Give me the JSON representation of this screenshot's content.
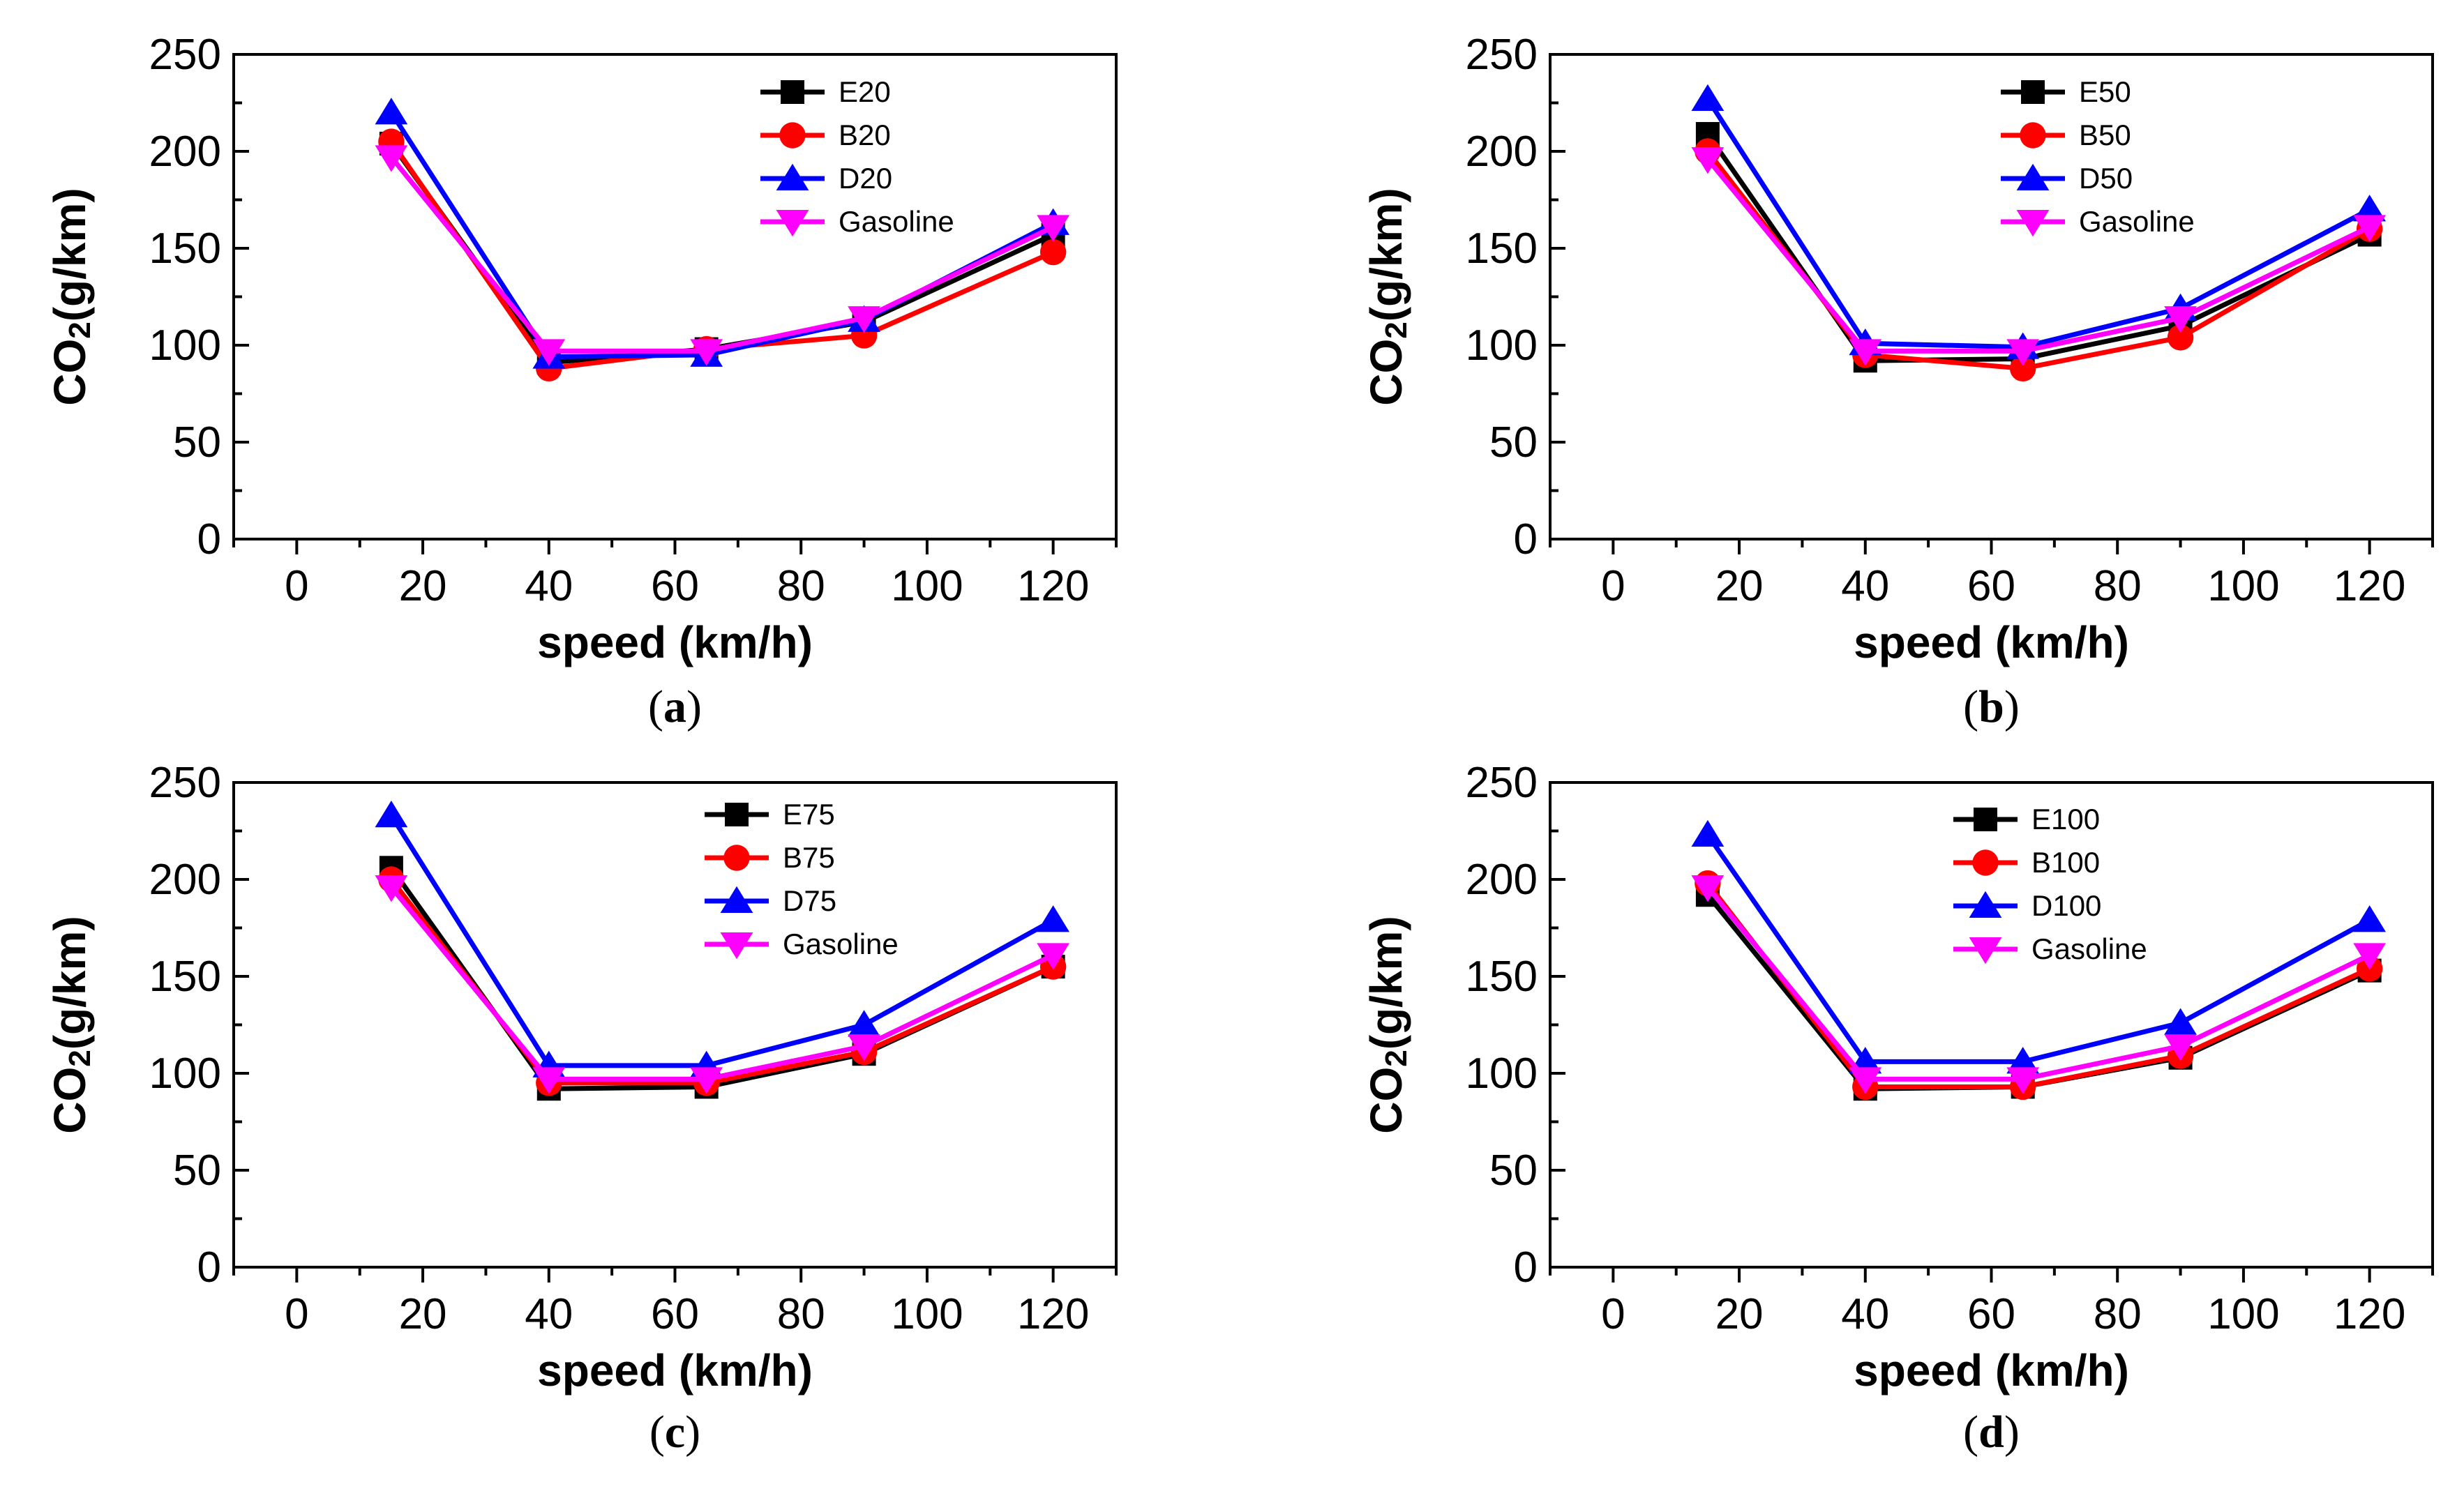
{
  "chart_data": [
    {
      "type": "line",
      "panel_label": "a",
      "xlabel": "speed (km/h)",
      "ylabel_main": "CO",
      "ylabel_sub": "2",
      "ylabel_rest": "(g/km)",
      "xlim": [
        -10,
        130
      ],
      "ylim": [
        0,
        250
      ],
      "xticks": [
        0,
        20,
        40,
        60,
        80,
        100,
        120
      ],
      "yticks": [
        0,
        50,
        100,
        150,
        200,
        250
      ],
      "legend_position": "top-right",
      "x": [
        15,
        40,
        65,
        90,
        120
      ],
      "series": [
        {
          "name": "E20",
          "values": [
            204,
            91,
            98,
            112,
            157
          ]
        },
        {
          "name": "B20",
          "values": [
            205,
            88,
            98,
            105,
            148
          ]
        },
        {
          "name": "D20",
          "values": [
            220,
            94,
            95,
            113,
            163
          ]
        },
        {
          "name": "Gasoline",
          "values": [
            197,
            97,
            97,
            114,
            161
          ]
        }
      ]
    },
    {
      "type": "line",
      "panel_label": "b",
      "xlabel": "speed (km/h)",
      "ylabel_main": "CO",
      "ylabel_sub": "2",
      "ylabel_rest": "(g/km)",
      "xlim": [
        -10,
        130
      ],
      "ylim": [
        0,
        250
      ],
      "xticks": [
        0,
        20,
        40,
        60,
        80,
        100,
        120
      ],
      "yticks": [
        0,
        50,
        100,
        150,
        200,
        250
      ],
      "legend_position": "top-right",
      "x": [
        15,
        40,
        65,
        90,
        120
      ],
      "series": [
        {
          "name": "E50",
          "values": [
            209,
            92,
            93,
            110,
            157
          ]
        },
        {
          "name": "B50",
          "values": [
            200,
            95,
            88,
            104,
            160
          ]
        },
        {
          "name": "D50",
          "values": [
            227,
            101,
            99,
            119,
            170
          ]
        },
        {
          "name": "Gasoline",
          "values": [
            196,
            97,
            97,
            114,
            161
          ]
        }
      ]
    },
    {
      "type": "line",
      "panel_label": "c",
      "xlabel": "speed (km/h)",
      "ylabel_main": "CO",
      "ylabel_sub": "2",
      "ylabel_rest": "(g/km)",
      "xlim": [
        -10,
        130
      ],
      "ylim": [
        0,
        250
      ],
      "xticks": [
        0,
        20,
        40,
        60,
        80,
        100,
        120
      ],
      "yticks": [
        0,
        50,
        100,
        150,
        200,
        250
      ],
      "legend_position": "top-right",
      "x": [
        15,
        40,
        65,
        90,
        120
      ],
      "series": [
        {
          "name": "E75",
          "values": [
            206,
            92,
            93,
            110,
            155
          ]
        },
        {
          "name": "B75",
          "values": [
            200,
            95,
            95,
            111,
            155
          ]
        },
        {
          "name": "D75",
          "values": [
            233,
            104,
            104,
            125,
            179
          ]
        },
        {
          "name": "Gasoline",
          "values": [
            196,
            97,
            97,
            114,
            161
          ]
        }
      ]
    },
    {
      "type": "line",
      "panel_label": "d",
      "xlabel": "speed (km/h)",
      "ylabel_main": "CO",
      "ylabel_sub": "2",
      "ylabel_rest": "(g/km)",
      "xlim": [
        -10,
        130
      ],
      "ylim": [
        0,
        250
      ],
      "xticks": [
        0,
        20,
        40,
        60,
        80,
        100,
        120
      ],
      "yticks": [
        0,
        50,
        100,
        150,
        200,
        250
      ],
      "legend_position": "top-right",
      "x": [
        15,
        40,
        65,
        90,
        120
      ],
      "series": [
        {
          "name": "E100",
          "values": [
            192,
            92,
            93,
            108,
            153
          ]
        },
        {
          "name": "B100",
          "values": [
            198,
            93,
            93,
            109,
            154
          ]
        },
        {
          "name": "D100",
          "values": [
            223,
            106,
            106,
            126,
            179
          ]
        },
        {
          "name": "Gasoline",
          "values": [
            196,
            97,
            97,
            114,
            161
          ]
        }
      ]
    }
  ],
  "series_colors": [
    "#000000",
    "#ff0000",
    "#0000ff",
    "#ff00ff"
  ],
  "series_markers": [
    "square",
    "circle",
    "triangle-up",
    "triangle-down"
  ]
}
